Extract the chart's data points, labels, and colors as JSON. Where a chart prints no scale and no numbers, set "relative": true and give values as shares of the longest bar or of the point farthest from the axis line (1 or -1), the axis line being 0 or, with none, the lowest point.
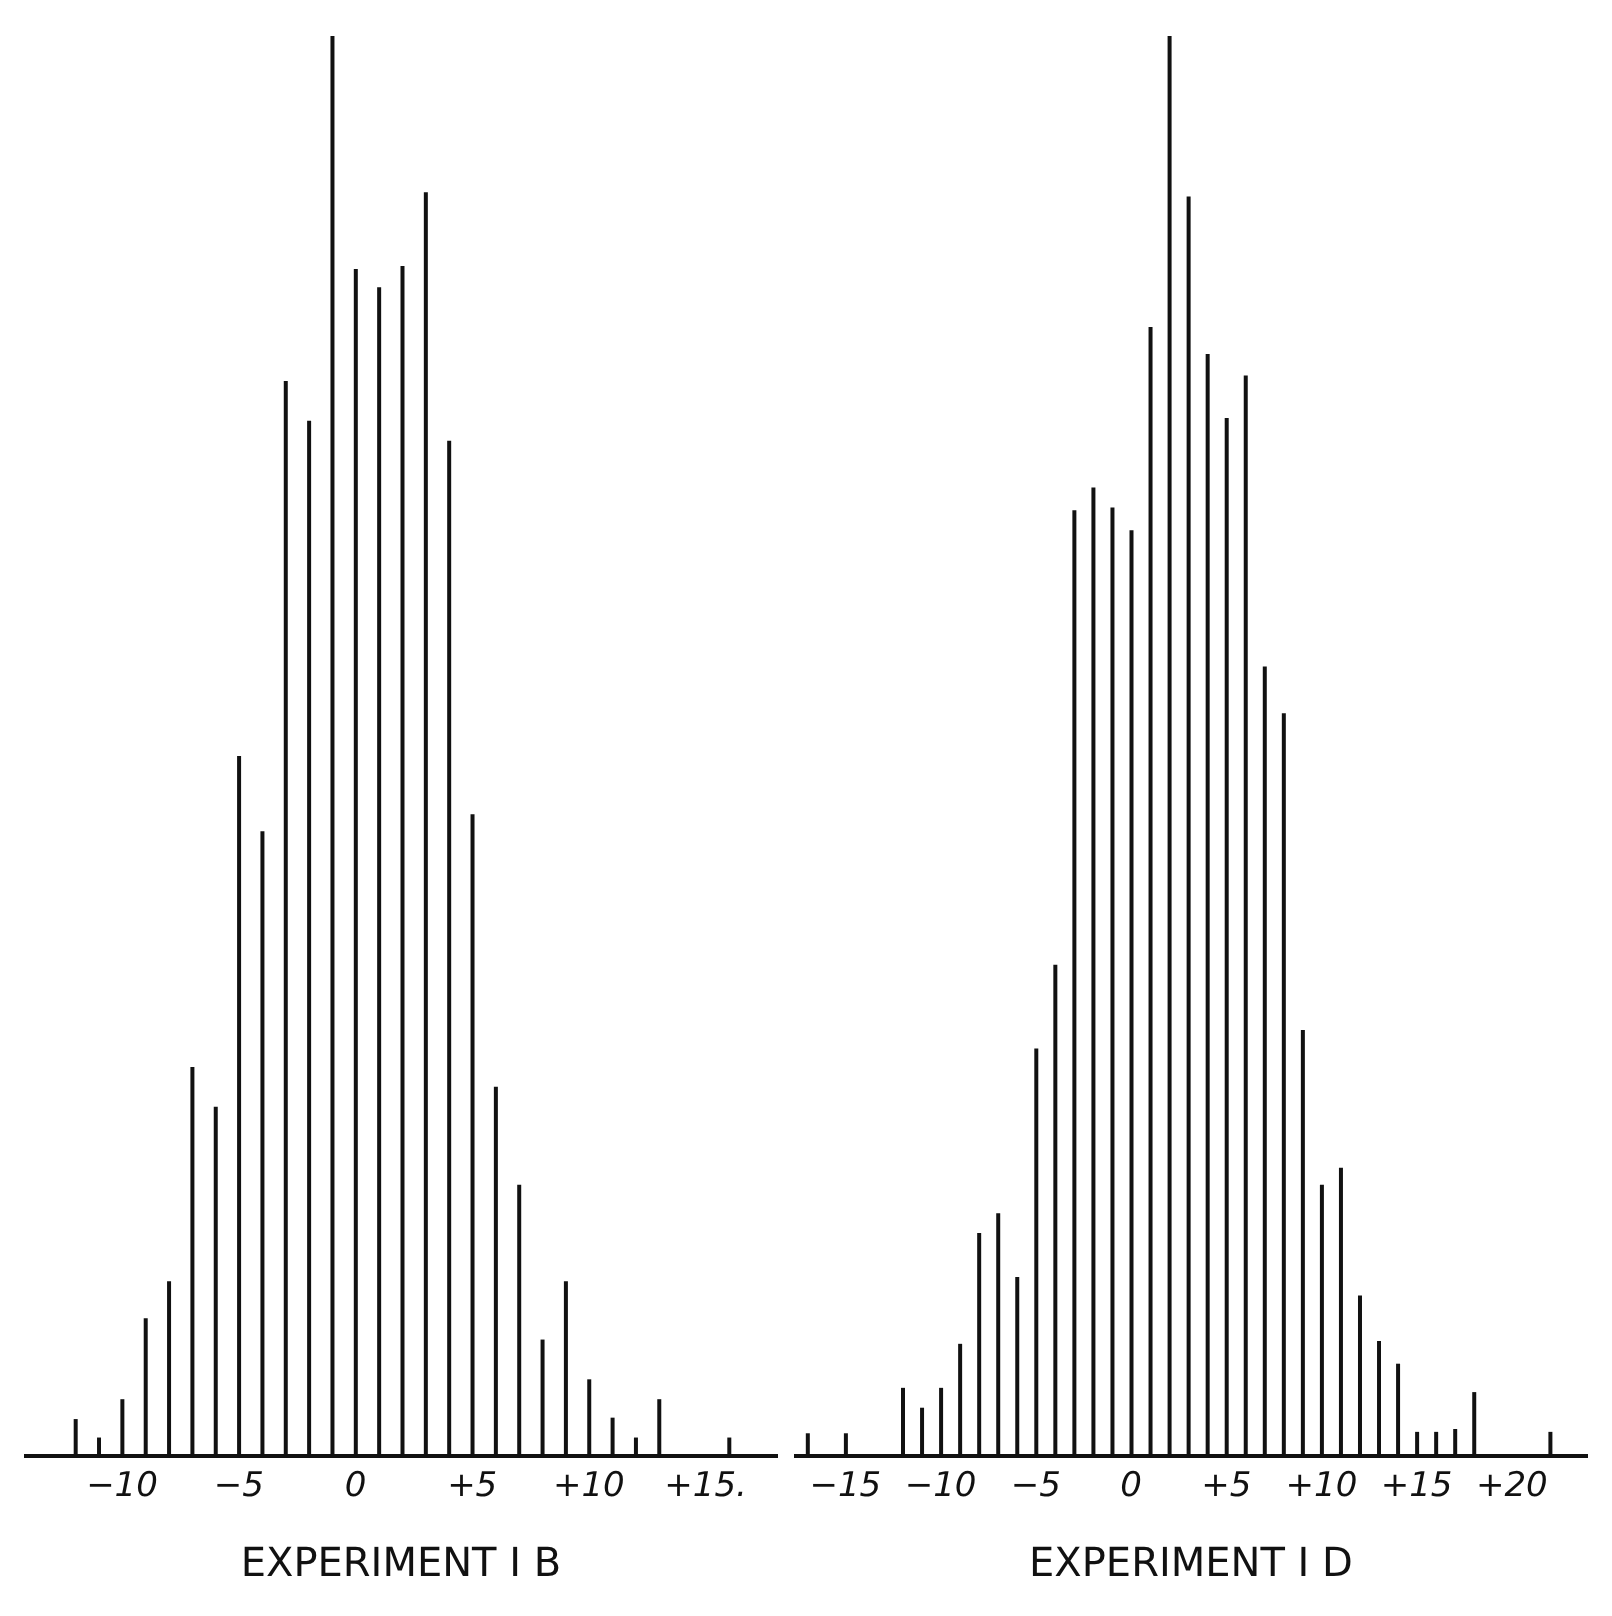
{
  "chart_data": [
    {
      "type": "bar",
      "relative": true,
      "color": "#111111",
      "xlabel": "EXPERIMENT I B",
      "x": [
        -12,
        -11,
        -10,
        -9,
        -8,
        -7,
        -6,
        -5,
        -4,
        -3,
        -2,
        -1,
        0,
        1,
        2,
        3,
        4,
        5,
        6,
        7,
        8,
        9,
        10,
        11,
        12,
        13,
        16
      ],
      "values": [
        0.026,
        0.013,
        0.04,
        0.097,
        0.123,
        0.274,
        0.246,
        0.493,
        0.44,
        0.757,
        0.729,
        1,
        0.836,
        0.823,
        0.838,
        0.89,
        0.715,
        0.452,
        0.26,
        0.191,
        0.082,
        0.123,
        0.054,
        0.027,
        0.013,
        0.04,
        0.013
      ],
      "xlim": [
        -14.2,
        18.1
      ],
      "xticks": [
        {
          "value": -10,
          "label": "−10"
        },
        {
          "value": -5,
          "label": "−5"
        },
        0,
        {
          "value": 5,
          "label": "+5"
        },
        {
          "value": 10,
          "label": "+10"
        },
        {
          "value": 15,
          "label": "+15."
        }
      ]
    },
    {
      "type": "bar",
      "relative": true,
      "color": "#111111",
      "xlabel": "EXPERIMENT I D",
      "x": [
        -17,
        -15,
        -12,
        -11,
        -10,
        -9,
        -8,
        -7,
        -6,
        -5,
        -4,
        -3,
        -2,
        -1,
        0,
        1,
        2,
        3,
        4,
        5,
        6,
        7,
        8,
        9,
        10,
        11,
        12,
        13,
        14,
        15,
        16,
        17,
        18,
        22
      ],
      "values": [
        0.016,
        0.016,
        0.048,
        0.034,
        0.048,
        0.079,
        0.157,
        0.171,
        0.126,
        0.287,
        0.346,
        0.666,
        0.682,
        0.668,
        0.652,
        0.795,
        1,
        0.887,
        0.776,
        0.731,
        0.761,
        0.556,
        0.523,
        0.3,
        0.191,
        0.203,
        0.113,
        0.081,
        0.065,
        0.017,
        0.017,
        0.019,
        0.045,
        0.017
      ],
      "xlim": [
        -17.7,
        24
      ],
      "xticks": [
        {
          "value": -15,
          "label": "−15"
        },
        {
          "value": -10,
          "label": "−10"
        },
        {
          "value": -5,
          "label": "−5"
        },
        0,
        {
          "value": 5,
          "label": "+5"
        },
        {
          "value": 10,
          "label": "+10"
        },
        {
          "value": 15,
          "label": "+15"
        },
        {
          "value": 20,
          "label": "+20"
        }
      ]
    }
  ]
}
